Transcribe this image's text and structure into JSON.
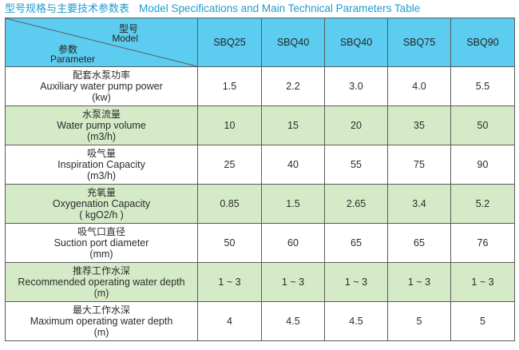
{
  "title": {
    "zh": "型号规格与主要技术参数表",
    "en": "Model Specifications and Main Technical Parameters Table"
  },
  "header": {
    "model_zh": "型号",
    "model_en": "Model",
    "param_zh": "参数",
    "param_en": "Parameter",
    "models": [
      "SBQ25",
      "SBQ40",
      "SBQ40",
      "SBQ75",
      "SBQ90"
    ]
  },
  "rows": [
    {
      "zh": "配套水泵功率",
      "en": "Auxiliary water pump power",
      "unit": "(kw)",
      "values": [
        "1.5",
        "2.2",
        "3.0",
        "4.0",
        "5.5"
      ]
    },
    {
      "zh": "水泵流量",
      "en": "Water pump volume",
      "unit": "(m3/h)",
      "values": [
        "10",
        "15",
        "20",
        "35",
        "50"
      ]
    },
    {
      "zh": "吸气量",
      "en": "Inspiration Capacity",
      "unit": "(m3/h)",
      "values": [
        "25",
        "40",
        "55",
        "75",
        "90"
      ]
    },
    {
      "zh": "充氧量",
      "en": "Oxygenation Capacity",
      "unit": "( kgO2/h )",
      "values": [
        "0.85",
        "1.5",
        "2.65",
        "3.4",
        "5.2"
      ]
    },
    {
      "zh": "吸气口直径",
      "en": "Suction port diameter",
      "unit": "(mm)",
      "values": [
        "50",
        "60",
        "65",
        "65",
        "76"
      ]
    },
    {
      "zh": "推荐工作水深",
      "en": "Recommended operating water depth",
      "unit": "(m)",
      "values": [
        "1 ~ 3",
        "1 ~ 3",
        "1 ~ 3",
        "1 ~ 3",
        "1 ~ 3"
      ]
    },
    {
      "zh": "最大工作水深",
      "en": "Maximum operating water depth",
      "unit": "(m)",
      "values": [
        "4",
        "4.5",
        "4.5",
        "5",
        "5"
      ]
    }
  ],
  "colors": {
    "title": "#1f9ccf",
    "header_bg": "#5ccdf0",
    "alt_row_bg": "#d5ebc7",
    "border": "#5a5a5a"
  }
}
